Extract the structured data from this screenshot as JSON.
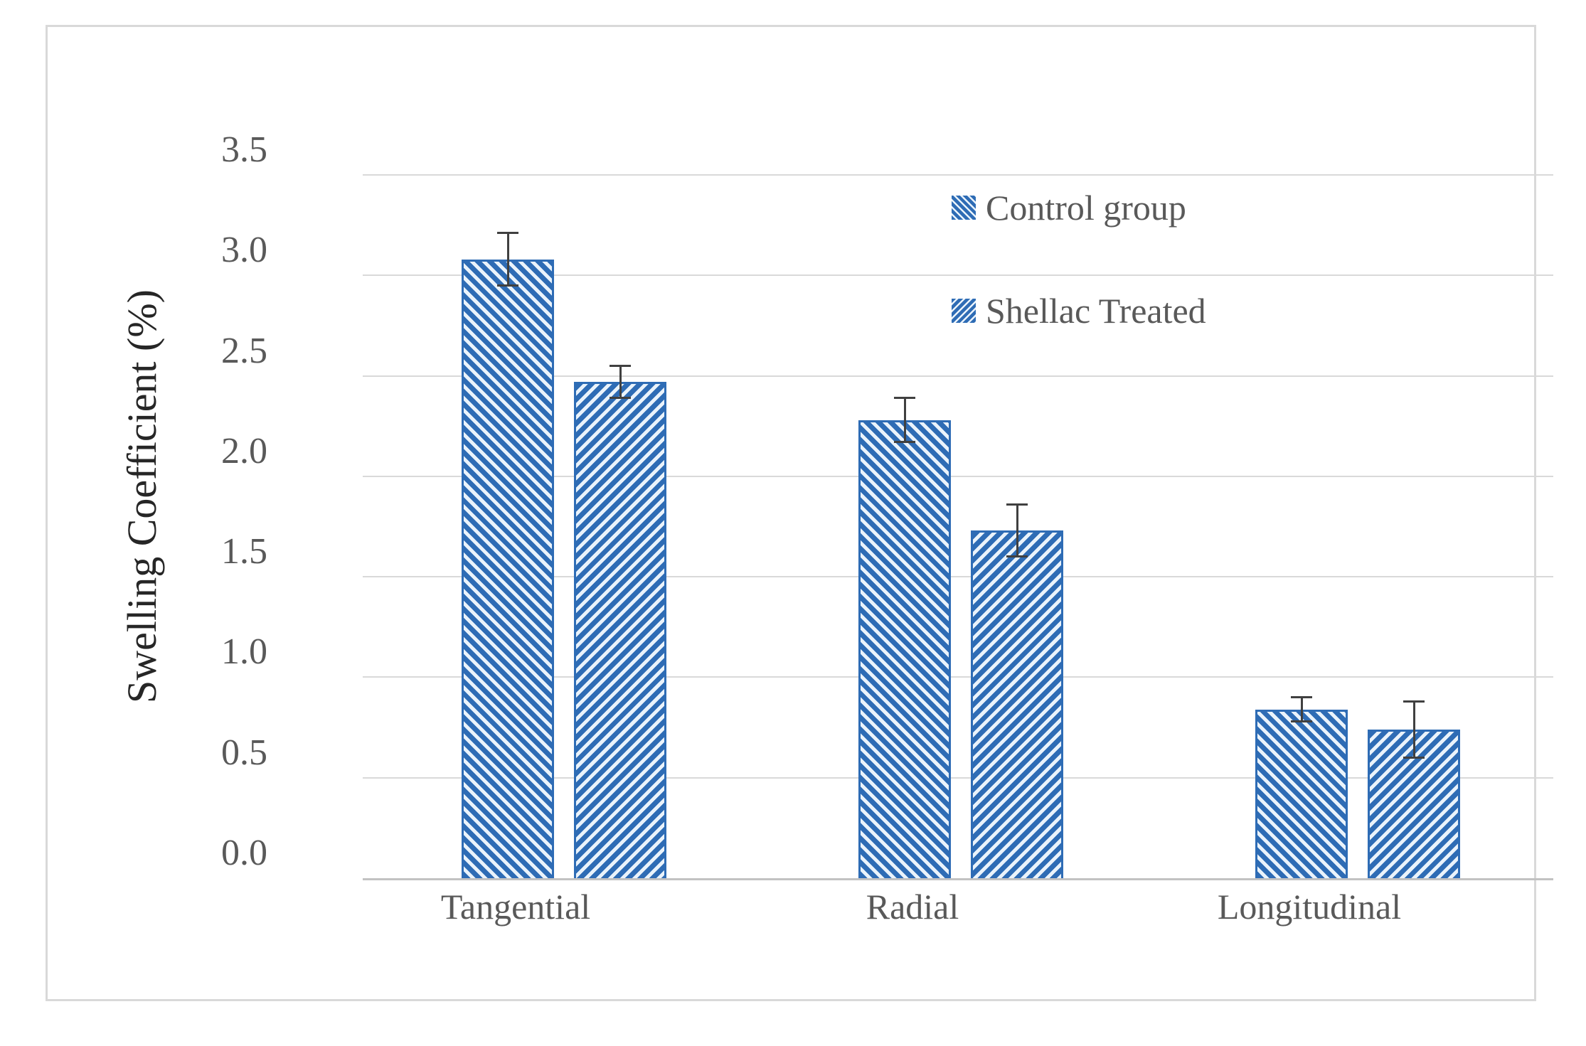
{
  "figure": {
    "background": "#ffffff",
    "frame_border_color": "#d9d9d9"
  },
  "chart_data": {
    "type": "bar",
    "title": "",
    "xlabel": "",
    "ylabel": "Swelling Coefficient (%)",
    "categories": [
      "Tangential",
      "Radial",
      "Longitudinal"
    ],
    "series": [
      {
        "name": "Control group",
        "values": [
          3.08,
          2.28,
          0.84
        ],
        "errors": [
          0.13,
          0.11,
          0.06
        ],
        "pattern": "diagonal-down"
      },
      {
        "name": "Shellac Treated",
        "values": [
          2.47,
          1.73,
          0.74
        ],
        "errors": [
          0.08,
          0.13,
          0.14
        ],
        "pattern": "diagonal-up"
      }
    ],
    "ylim": [
      0.0,
      3.5
    ],
    "ytick_step": 0.5,
    "yticks": [
      "0.0",
      "0.5",
      "1.0",
      "1.5",
      "2.0",
      "2.5",
      "3.0",
      "3.5"
    ],
    "grid": true,
    "legend_position": "upper-right-inside",
    "colors": {
      "bar_stripe": "#2e6cb5",
      "bar_background": "#eaf3fb",
      "gridline": "#d9d9d9",
      "axis_line": "#c2c2c2",
      "error_bar": "#404040",
      "tick_text": "#595959",
      "category_text": "#595959",
      "ylabel_text": "#262626"
    }
  }
}
